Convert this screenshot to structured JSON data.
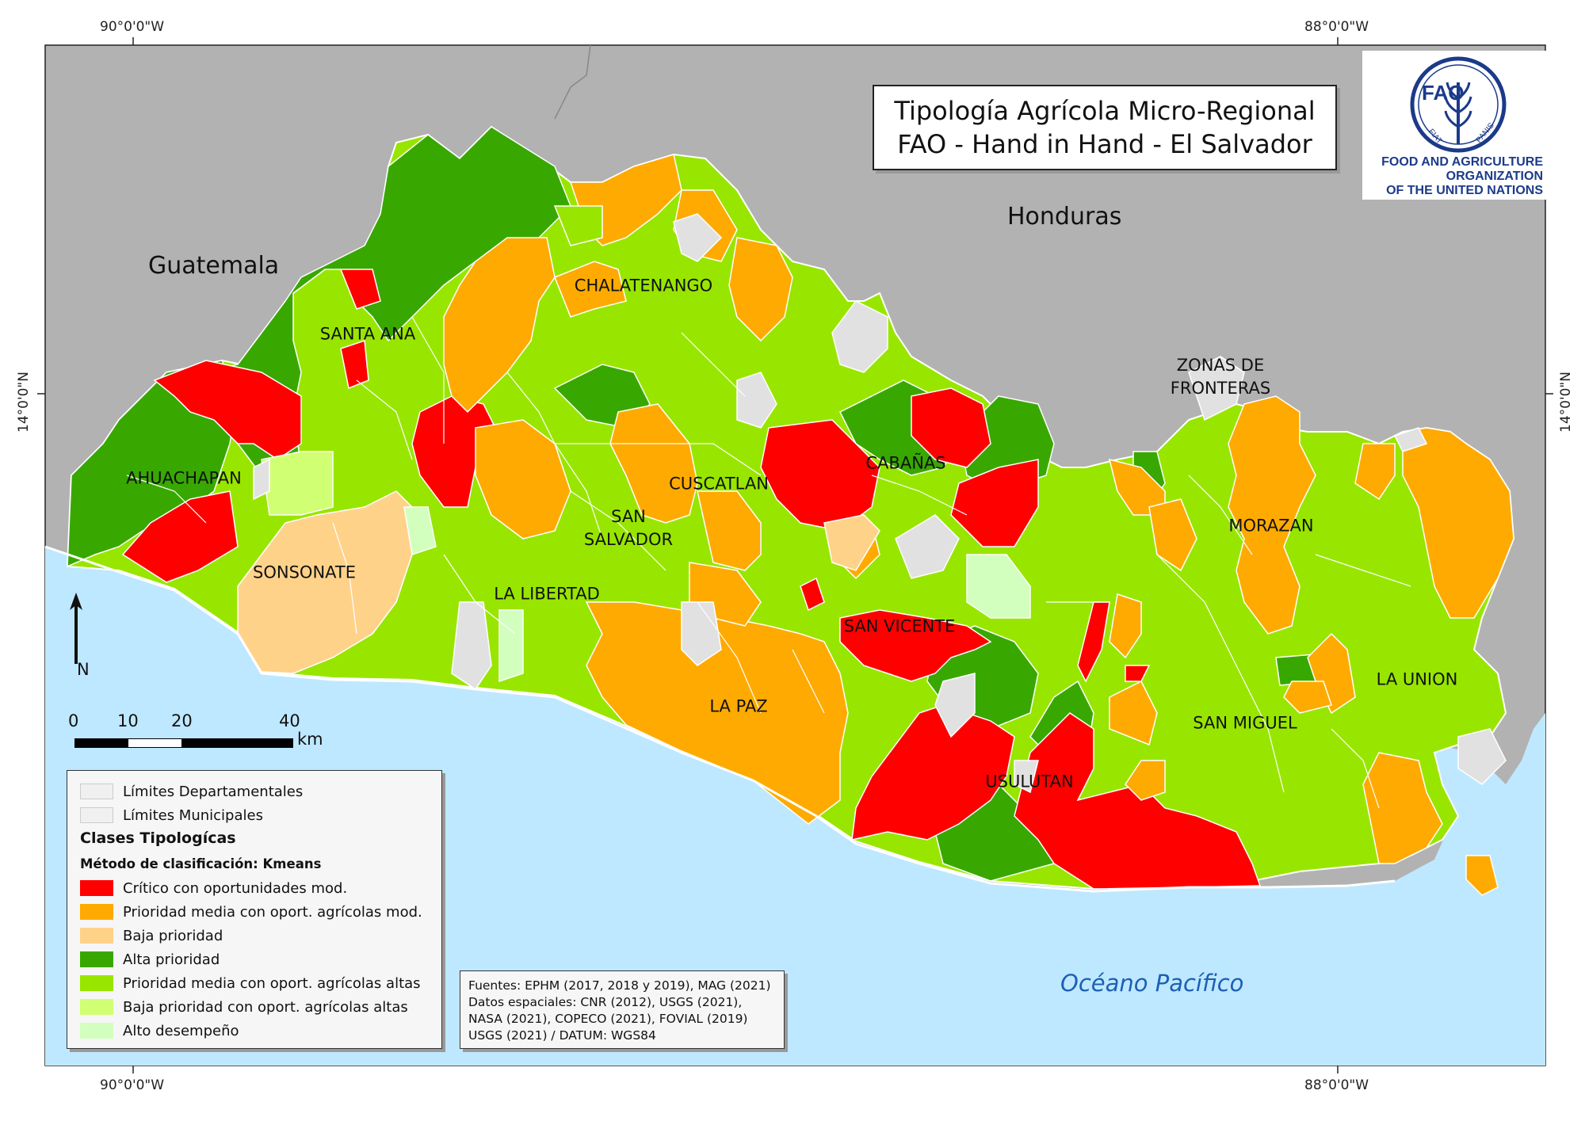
{
  "title": {
    "line1": "Tipología Agrícola Micro-Regional",
    "line2": "FAO - Hand in Hand - El Salvador"
  },
  "coordinates": {
    "top_left": "90°0'0\"W",
    "top_right": "88°0'0\"W",
    "bottom_left": "90°0'0\"W",
    "bottom_right": "88°0'0\"W",
    "left": "14°0'0\"N",
    "right": "14°0'0\"N"
  },
  "countries": {
    "guatemala": "Guatemala",
    "honduras": "Honduras"
  },
  "ocean": "Océano Pacífico",
  "departments": [
    {
      "label": "SANTA ANA"
    },
    {
      "label": "AHUACHAPAN"
    },
    {
      "label": "SONSONATE"
    },
    {
      "label": "CHALATENANGO"
    },
    {
      "label": "LA LIBERTAD"
    },
    {
      "label": "SAN\nSALVADOR"
    },
    {
      "label": "CUSCATLAN"
    },
    {
      "label": "CABAÑAS"
    },
    {
      "label": "SAN VICENTE"
    },
    {
      "label": "LA PAZ"
    },
    {
      "label": "USULUTAN"
    },
    {
      "label": "SAN MIGUEL"
    },
    {
      "label": "MORAZAN"
    },
    {
      "label": "LA UNION"
    },
    {
      "label": "ZONAS DE\nFRONTERAS"
    }
  ],
  "logo": {
    "letters": "FAO",
    "motto_left": "FIAT",
    "motto_right": "PANIS",
    "org_line1": "FOOD AND AGRICULTURE",
    "org_line2": "ORGANIZATION",
    "org_line3": "OF THE UNITED NATIONS"
  },
  "north": "N",
  "scale": {
    "ticks": [
      "0",
      "10",
      "20",
      "40"
    ],
    "unit": "km"
  },
  "legend": {
    "boundary_items": [
      "Límites Departamentales",
      "Límites Municipales"
    ],
    "heading": "Clases Tipologícas",
    "method": "Método de clasificación: Kmeans",
    "classes": [
      {
        "label": "Crítico con oportunidades mod.",
        "color": "#ff0000"
      },
      {
        "label": "Prioridad media con oport. agrícolas mod.",
        "color": "#ffaa00"
      },
      {
        "label": "Baja prioridad",
        "color": "#ffd28a"
      },
      {
        "label": "Alta prioridad",
        "color": "#38a800"
      },
      {
        "label": "Prioridad media con oport. agrícolas altas",
        "color": "#98e600"
      },
      {
        "label": "Baja prioridad con oport. agrícolas altas",
        "color": "#d1ff73"
      },
      {
        "label": "Alto desempeño",
        "color": "#d3ffbe"
      }
    ]
  },
  "sources": [
    "Fuentes: EPHM (2017, 2018 y 2019), MAG (2021)",
    "Datos espaciales: CNR (2012), USGS (2021),",
    "NASA (2021), COPECO (2021), FOVIAL (2019)",
    "USGS (2021) / DATUM: WGS84"
  ],
  "colors": {
    "land_neighbors": "#b2b2b2",
    "ocean": "#bee8ff",
    "no_data": "#e1e1e1",
    "ocean_label": "#1d5fb5"
  }
}
